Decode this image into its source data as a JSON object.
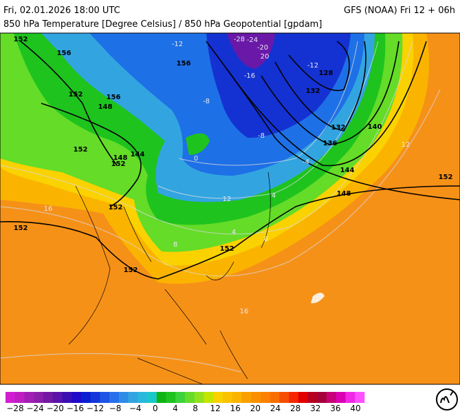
{
  "header": {
    "valid_time": "Fri, 02.01.2026 18:00 UTC",
    "model_run": "GFS (NOAA) Fri 12 + 06h",
    "subtitle": "850 hPa Temperature [Degree Celsius] / 850 hPa Geopotential [gpdam]"
  },
  "map": {
    "geopotential_labels": [
      "152",
      "156",
      "152",
      "148",
      "144",
      "148",
      "152",
      "152",
      "152",
      "152",
      "152",
      "148",
      "144",
      "140",
      "136",
      "132",
      "128",
      "156",
      "156",
      "152",
      "132",
      "152"
    ],
    "temperature_labels": [
      "-28",
      "-24",
      "-20",
      "-16",
      "-12",
      "-12",
      "-8",
      "-4",
      "0",
      "4",
      "8",
      "12",
      "16",
      "12",
      "16",
      "8",
      "4",
      "-8",
      "20"
    ]
  },
  "colorbar": {
    "colors": [
      "#d21ed2",
      "#be1ec3",
      "#a31eb4",
      "#8c1eaa",
      "#7319a5",
      "#5a14aa",
      "#3c0fb4",
      "#1e0ac8",
      "#0a1ed2",
      "#1437dc",
      "#1e55e6",
      "#2870eb",
      "#2d8ce6",
      "#32a5e1",
      "#28b9dc",
      "#19c8c8",
      "#0fb414",
      "#1ec31e",
      "#3cd23c",
      "#64dc28",
      "#91e11e",
      "#c3e600",
      "#fad200",
      "#fac300",
      "#fab400",
      "#faa000",
      "#fa9100",
      "#fa8200",
      "#fa6e00",
      "#f55000",
      "#f52800",
      "#e10000",
      "#b4001e",
      "#a5003c",
      "#c80078",
      "#dc00b4",
      "#f028e6",
      "#ff50ff"
    ],
    "ticks": [
      "−28",
      "−24",
      "−20",
      "−16",
      "−12",
      "−8",
      "−4",
      "0",
      "4",
      "8",
      "12",
      "16",
      "20",
      "24",
      "28",
      "32",
      "36",
      "40"
    ]
  }
}
